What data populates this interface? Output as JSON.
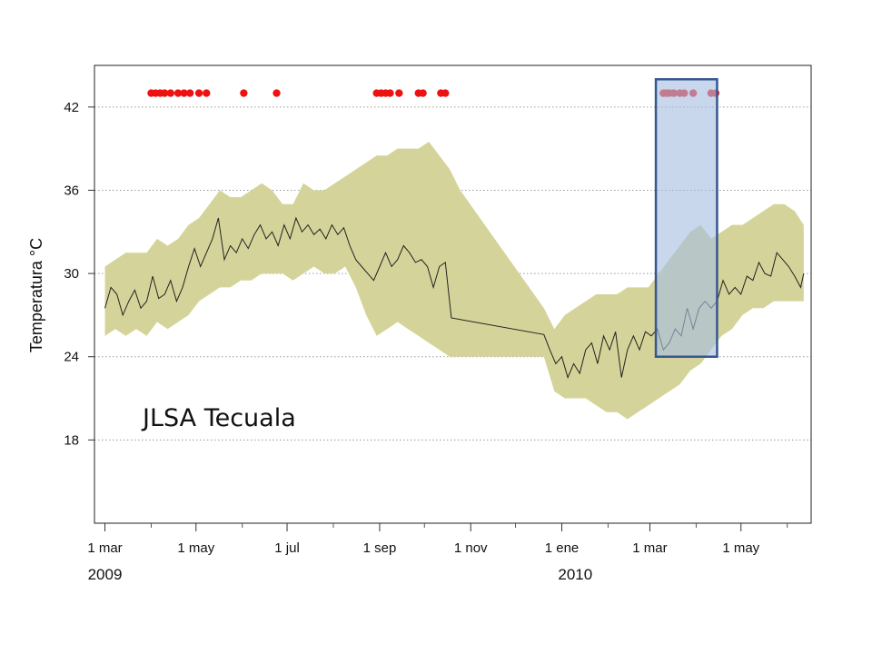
{
  "chart_data": {
    "type": "line",
    "title": "",
    "annotation": "JLSA Tecuala",
    "xlabel": "",
    "ylabel": "Temperatura °C",
    "ylim": [
      12,
      45
    ],
    "yticks": [
      18,
      24,
      30,
      36,
      42
    ],
    "grid": "horizontal dotted",
    "x_tick_labels": [
      "1 mar",
      "1 may",
      "1 jul",
      "1 sep",
      "1 nov",
      "1 ene",
      "1 mar",
      "1 may"
    ],
    "x_tick_dates": [
      "2009-03-01",
      "2009-05-01",
      "2009-07-01",
      "2009-09-01",
      "2009-11-01",
      "2010-01-01",
      "2010-03-01",
      "2010-05-01"
    ],
    "x_minor_dates": [
      "2009-04-01",
      "2009-06-01",
      "2009-08-01",
      "2009-10-01",
      "2009-12-01",
      "2010-02-01",
      "2010-04-01",
      "2010-06-01"
    ],
    "xlim": [
      "2009-02-22",
      "2010-06-17"
    ],
    "year_labels": [
      {
        "text": "2009",
        "date": "2009-03-01"
      },
      {
        "text": "2010",
        "date": "2010-01-10"
      }
    ],
    "colors": {
      "band": "#d4d49a",
      "line": "#222222",
      "events": "#ee1111",
      "highlight_fill": "#a7bfe0",
      "highlight_stroke": "#36578f",
      "grid": "#9a9a9a"
    },
    "series": [
      {
        "type": "line",
        "points": [
          [
            "2009-03-01",
            27.5
          ],
          [
            "2009-03-05",
            29.0
          ],
          [
            "2009-03-09",
            28.5
          ],
          [
            "2009-03-13",
            27.0
          ],
          [
            "2009-03-17",
            28.0
          ],
          [
            "2009-03-21",
            28.8
          ],
          [
            "2009-03-25",
            27.5
          ],
          [
            "2009-03-29",
            28.0
          ],
          [
            "2009-04-02",
            29.8
          ],
          [
            "2009-04-06",
            28.2
          ],
          [
            "2009-04-10",
            28.5
          ],
          [
            "2009-04-14",
            29.5
          ],
          [
            "2009-04-18",
            28.0
          ],
          [
            "2009-04-22",
            29.0
          ],
          [
            "2009-04-26",
            30.5
          ],
          [
            "2009-04-30",
            31.8
          ],
          [
            "2009-05-04",
            30.5
          ],
          [
            "2009-05-08",
            31.5
          ],
          [
            "2009-05-12",
            32.5
          ],
          [
            "2009-05-16",
            34.0
          ],
          [
            "2009-05-20",
            31.0
          ],
          [
            "2009-05-24",
            32.0
          ],
          [
            "2009-05-28",
            31.5
          ],
          [
            "2009-06-01",
            32.5
          ],
          [
            "2009-06-05",
            31.8
          ],
          [
            "2009-06-09",
            32.8
          ],
          [
            "2009-06-13",
            33.5
          ],
          [
            "2009-06-17",
            32.5
          ],
          [
            "2009-06-21",
            33.0
          ],
          [
            "2009-06-25",
            32.0
          ],
          [
            "2009-06-29",
            33.5
          ],
          [
            "2009-07-03",
            32.5
          ],
          [
            "2009-07-07",
            34.0
          ],
          [
            "2009-07-11",
            33.0
          ],
          [
            "2009-07-15",
            33.5
          ],
          [
            "2009-07-19",
            32.8
          ],
          [
            "2009-07-23",
            33.2
          ],
          [
            "2009-07-27",
            32.5
          ],
          [
            "2009-07-31",
            33.5
          ],
          [
            "2009-08-04",
            32.8
          ],
          [
            "2009-08-08",
            33.3
          ],
          [
            "2009-08-12",
            32.0
          ],
          [
            "2009-08-16",
            31.0
          ],
          [
            "2009-08-20",
            30.5
          ],
          [
            "2009-08-24",
            30.0
          ],
          [
            "2009-08-28",
            29.5
          ],
          [
            "2009-09-01",
            30.5
          ],
          [
            "2009-09-05",
            31.5
          ],
          [
            "2009-09-09",
            30.5
          ],
          [
            "2009-09-13",
            31.0
          ],
          [
            "2009-09-17",
            32.0
          ],
          [
            "2009-09-21",
            31.5
          ],
          [
            "2009-09-25",
            30.8
          ],
          [
            "2009-09-29",
            31.0
          ],
          [
            "2009-10-03",
            30.5
          ],
          [
            "2009-10-07",
            29.0
          ],
          [
            "2009-10-11",
            30.5
          ],
          [
            "2009-10-15",
            30.8
          ],
          [
            "2009-10-19",
            26.8
          ],
          [
            "2009-12-20",
            25.6
          ],
          [
            "2009-12-24",
            24.5
          ],
          [
            "2009-12-28",
            23.5
          ],
          [
            "2010-01-01",
            24.0
          ],
          [
            "2010-01-05",
            22.5
          ],
          [
            "2010-01-09",
            23.5
          ],
          [
            "2010-01-13",
            22.8
          ],
          [
            "2010-01-17",
            24.5
          ],
          [
            "2010-01-21",
            25.0
          ],
          [
            "2010-01-25",
            23.5
          ],
          [
            "2010-01-29",
            25.5
          ],
          [
            "2010-02-02",
            24.5
          ],
          [
            "2010-02-06",
            25.8
          ],
          [
            "2010-02-10",
            22.5
          ],
          [
            "2010-02-14",
            24.5
          ],
          [
            "2010-02-18",
            25.5
          ],
          [
            "2010-02-22",
            24.5
          ],
          [
            "2010-02-26",
            25.8
          ],
          [
            "2010-03-02",
            25.5
          ],
          [
            "2010-03-06",
            26.0
          ],
          [
            "2010-03-10",
            24.5
          ],
          [
            "2010-03-14",
            25.0
          ],
          [
            "2010-03-18",
            26.0
          ],
          [
            "2010-03-22",
            25.5
          ],
          [
            "2010-03-26",
            27.5
          ],
          [
            "2010-03-30",
            26.0
          ],
          [
            "2010-04-03",
            27.5
          ],
          [
            "2010-04-07",
            28.0
          ],
          [
            "2010-04-11",
            27.5
          ],
          [
            "2010-04-15",
            28.0
          ],
          [
            "2010-04-19",
            29.5
          ],
          [
            "2010-04-23",
            28.5
          ],
          [
            "2010-04-27",
            29.0
          ],
          [
            "2010-05-01",
            28.5
          ],
          [
            "2010-05-05",
            29.8
          ],
          [
            "2010-05-09",
            29.5
          ],
          [
            "2010-05-13",
            30.8
          ],
          [
            "2010-05-17",
            30.0
          ],
          [
            "2010-05-21",
            29.8
          ],
          [
            "2010-05-25",
            31.5
          ],
          [
            "2010-05-29",
            31.0
          ],
          [
            "2010-06-02",
            30.5
          ],
          [
            "2010-06-06",
            29.8
          ],
          [
            "2010-06-10",
            29.0
          ],
          [
            "2010-06-12",
            30.0
          ]
        ]
      },
      {
        "type": "band",
        "points": [
          [
            "2009-03-01",
            25.5,
            30.5
          ],
          [
            "2009-03-08",
            26.0,
            31.0
          ],
          [
            "2009-03-15",
            25.5,
            31.5
          ],
          [
            "2009-03-22",
            26.0,
            31.5
          ],
          [
            "2009-03-29",
            25.5,
            31.5
          ],
          [
            "2009-04-05",
            26.5,
            32.5
          ],
          [
            "2009-04-12",
            26.0,
            32.0
          ],
          [
            "2009-04-19",
            26.5,
            32.5
          ],
          [
            "2009-04-26",
            27.0,
            33.5
          ],
          [
            "2009-05-03",
            28.0,
            34.0
          ],
          [
            "2009-05-10",
            28.5,
            35.0
          ],
          [
            "2009-05-17",
            29.0,
            36.0
          ],
          [
            "2009-05-24",
            29.0,
            35.5
          ],
          [
            "2009-05-31",
            29.5,
            35.5
          ],
          [
            "2009-06-07",
            29.5,
            36.0
          ],
          [
            "2009-06-14",
            30.0,
            36.5
          ],
          [
            "2009-06-21",
            30.0,
            36.0
          ],
          [
            "2009-06-28",
            30.0,
            35.0
          ],
          [
            "2009-07-05",
            29.5,
            35.0
          ],
          [
            "2009-07-12",
            30.0,
            36.5
          ],
          [
            "2009-07-19",
            30.5,
            36.0
          ],
          [
            "2009-07-26",
            30.0,
            36.0
          ],
          [
            "2009-08-02",
            30.0,
            36.5
          ],
          [
            "2009-08-09",
            30.5,
            37.0
          ],
          [
            "2009-08-16",
            29.0,
            37.5
          ],
          [
            "2009-08-23",
            27.0,
            38.0
          ],
          [
            "2009-08-30",
            25.5,
            38.5
          ],
          [
            "2009-09-06",
            26.0,
            38.5
          ],
          [
            "2009-09-13",
            26.5,
            39.0
          ],
          [
            "2009-09-20",
            26.0,
            39.0
          ],
          [
            "2009-09-27",
            25.5,
            39.0
          ],
          [
            "2009-10-04",
            25.0,
            39.5
          ],
          [
            "2009-10-11",
            24.5,
            38.5
          ],
          [
            "2009-10-18",
            24.0,
            37.5
          ],
          [
            "2009-10-25",
            24.0,
            36.0
          ],
          [
            "2009-12-20",
            24.0,
            27.5
          ],
          [
            "2009-12-27",
            21.5,
            26.0
          ],
          [
            "2010-01-03",
            21.0,
            27.0
          ],
          [
            "2010-01-10",
            21.0,
            27.5
          ],
          [
            "2010-01-17",
            21.0,
            28.0
          ],
          [
            "2010-01-24",
            20.5,
            28.5
          ],
          [
            "2010-01-31",
            20.0,
            28.5
          ],
          [
            "2010-02-07",
            20.0,
            28.5
          ],
          [
            "2010-02-14",
            19.5,
            29.0
          ],
          [
            "2010-02-21",
            20.0,
            29.0
          ],
          [
            "2010-02-28",
            20.5,
            29.0
          ],
          [
            "2010-03-07",
            21.0,
            30.0
          ],
          [
            "2010-03-14",
            21.5,
            31.0
          ],
          [
            "2010-03-21",
            22.0,
            32.0
          ],
          [
            "2010-03-28",
            23.0,
            33.0
          ],
          [
            "2010-04-04",
            23.5,
            33.5
          ],
          [
            "2010-04-11",
            24.5,
            32.5
          ],
          [
            "2010-04-18",
            25.5,
            33.0
          ],
          [
            "2010-04-25",
            26.0,
            33.5
          ],
          [
            "2010-05-02",
            27.0,
            33.5
          ],
          [
            "2010-05-09",
            27.5,
            34.0
          ],
          [
            "2010-05-16",
            27.5,
            34.5
          ],
          [
            "2010-05-23",
            28.0,
            35.0
          ],
          [
            "2010-05-30",
            28.0,
            35.0
          ],
          [
            "2010-06-06",
            28.0,
            34.5
          ],
          [
            "2010-06-12",
            28.0,
            33.5
          ]
        ]
      },
      {
        "type": "events",
        "y": 43.0,
        "dates": [
          "2009-04-01",
          "2009-04-04",
          "2009-04-07",
          "2009-04-10",
          "2009-04-14",
          "2009-04-19",
          "2009-04-23",
          "2009-04-27",
          "2009-05-03",
          "2009-05-08",
          "2009-06-02",
          "2009-06-24",
          "2009-08-30",
          "2009-09-02",
          "2009-09-05",
          "2009-09-08",
          "2009-09-14",
          "2009-09-27",
          "2009-09-30",
          "2009-10-12",
          "2009-10-15",
          "2010-03-10",
          "2010-03-12",
          "2010-03-14",
          "2010-03-17",
          "2010-03-21",
          "2010-03-24",
          "2010-03-30",
          "2010-04-11",
          "2010-04-14"
        ]
      }
    ],
    "highlight": {
      "x_start": "2010-03-05",
      "x_end": "2010-04-15",
      "y_start": 24,
      "y_end": 44.0
    }
  }
}
